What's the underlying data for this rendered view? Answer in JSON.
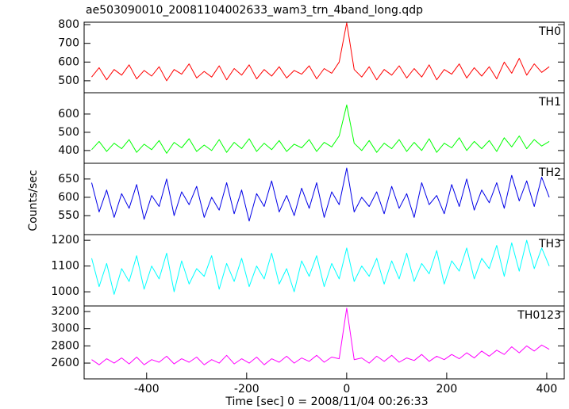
{
  "title": "ae503090010_20081104002633_wam3_trn_4band_long.qdp",
  "xlabel": "Time [sec] 0 = 2008/11/04 00:26:33",
  "ylabel": "Counts/sec",
  "chart_data": [
    {
      "type": "line",
      "label": "TH0",
      "color": "#ff0000",
      "x": [
        -510,
        -495,
        -480,
        -465,
        -450,
        -435,
        -420,
        -405,
        -390,
        -375,
        -360,
        -345,
        -330,
        -315,
        -300,
        -285,
        -270,
        -255,
        -240,
        -225,
        -210,
        -195,
        -180,
        -165,
        -150,
        -135,
        -120,
        -105,
        -90,
        -75,
        -60,
        -45,
        -30,
        -15,
        0,
        15,
        30,
        45,
        60,
        75,
        90,
        105,
        120,
        135,
        150,
        165,
        180,
        195,
        210,
        225,
        240,
        255,
        270,
        285,
        300,
        315,
        330,
        345,
        360,
        375,
        390,
        405
      ],
      "values": [
        520,
        570,
        505,
        560,
        530,
        585,
        510,
        555,
        525,
        575,
        500,
        560,
        535,
        590,
        515,
        550,
        520,
        580,
        505,
        565,
        530,
        585,
        510,
        560,
        525,
        575,
        515,
        555,
        535,
        580,
        510,
        565,
        540,
        600,
        810,
        560,
        520,
        575,
        505,
        560,
        530,
        580,
        515,
        565,
        520,
        585,
        505,
        560,
        535,
        590,
        515,
        570,
        525,
        575,
        510,
        600,
        540,
        620,
        530,
        590,
        545,
        575
      ],
      "xlim": [
        -525,
        435
      ],
      "ylim": [
        436,
        813
      ],
      "yticks": [
        500,
        600,
        700,
        800
      ]
    },
    {
      "type": "line",
      "label": "TH1",
      "color": "#00ff00",
      "x": [
        -510,
        -495,
        -480,
        -465,
        -450,
        -435,
        -420,
        -405,
        -390,
        -375,
        -360,
        -345,
        -330,
        -315,
        -300,
        -285,
        -270,
        -255,
        -240,
        -225,
        -210,
        -195,
        -180,
        -165,
        -150,
        -135,
        -120,
        -105,
        -90,
        -75,
        -60,
        -45,
        -30,
        -15,
        0,
        15,
        30,
        45,
        60,
        75,
        90,
        105,
        120,
        135,
        150,
        165,
        180,
        195,
        210,
        225,
        240,
        255,
        270,
        285,
        300,
        315,
        330,
        345,
        360,
        375,
        390,
        405
      ],
      "values": [
        405,
        450,
        395,
        440,
        410,
        460,
        390,
        435,
        405,
        455,
        385,
        445,
        415,
        465,
        395,
        430,
        400,
        460,
        390,
        445,
        410,
        465,
        395,
        440,
        405,
        455,
        395,
        435,
        415,
        460,
        395,
        445,
        420,
        480,
        650,
        440,
        400,
        455,
        390,
        440,
        410,
        460,
        395,
        445,
        400,
        465,
        390,
        440,
        415,
        470,
        400,
        450,
        410,
        455,
        395,
        470,
        420,
        480,
        410,
        460,
        425,
        450
      ],
      "xlim": [
        -525,
        435
      ],
      "ylim": [
        330,
        717
      ],
      "yticks": [
        400,
        500,
        600
      ]
    },
    {
      "type": "line",
      "label": "TH2",
      "color": "#0000e8",
      "x": [
        -510,
        -495,
        -480,
        -465,
        -450,
        -435,
        -420,
        -405,
        -390,
        -375,
        -360,
        -345,
        -330,
        -315,
        -300,
        -285,
        -270,
        -255,
        -240,
        -225,
        -210,
        -195,
        -180,
        -165,
        -150,
        -135,
        -120,
        -105,
        -90,
        -75,
        -60,
        -45,
        -30,
        -15,
        0,
        15,
        30,
        45,
        60,
        75,
        90,
        105,
        120,
        135,
        150,
        165,
        180,
        195,
        210,
        225,
        240,
        255,
        270,
        285,
        300,
        315,
        330,
        345,
        360,
        375,
        390,
        405
      ],
      "values": [
        640,
        560,
        620,
        545,
        610,
        570,
        635,
        540,
        605,
        575,
        650,
        550,
        615,
        580,
        630,
        545,
        600,
        565,
        640,
        555,
        620,
        535,
        610,
        575,
        645,
        560,
        605,
        550,
        625,
        570,
        640,
        545,
        615,
        580,
        680,
        560,
        600,
        575,
        615,
        555,
        630,
        570,
        610,
        545,
        640,
        580,
        605,
        555,
        635,
        575,
        650,
        565,
        620,
        585,
        640,
        570,
        660,
        590,
        645,
        575,
        655,
        600
      ],
      "xlim": [
        -525,
        435
      ],
      "ylim": [
        498,
        693
      ],
      "yticks": [
        550,
        600,
        650
      ]
    },
    {
      "type": "line",
      "label": "TH3",
      "color": "#00ffff",
      "x": [
        -510,
        -495,
        -480,
        -465,
        -450,
        -435,
        -420,
        -405,
        -390,
        -375,
        -360,
        -345,
        -330,
        -315,
        -300,
        -285,
        -270,
        -255,
        -240,
        -225,
        -210,
        -195,
        -180,
        -165,
        -150,
        -135,
        -120,
        -105,
        -90,
        -75,
        -60,
        -45,
        -30,
        -15,
        0,
        15,
        30,
        45,
        60,
        75,
        90,
        105,
        120,
        135,
        150,
        165,
        180,
        195,
        210,
        225,
        240,
        255,
        270,
        285,
        300,
        315,
        330,
        345,
        360,
        375,
        390,
        405
      ],
      "values": [
        1130,
        1020,
        1110,
        990,
        1090,
        1040,
        1140,
        1010,
        1100,
        1050,
        1150,
        1000,
        1120,
        1030,
        1090,
        1060,
        1140,
        1010,
        1110,
        1040,
        1130,
        1020,
        1100,
        1050,
        1150,
        1030,
        1090,
        1000,
        1120,
        1060,
        1140,
        1020,
        1110,
        1050,
        1170,
        1040,
        1100,
        1060,
        1130,
        1030,
        1120,
        1050,
        1150,
        1040,
        1110,
        1070,
        1160,
        1030,
        1120,
        1080,
        1170,
        1050,
        1130,
        1090,
        1180,
        1060,
        1190,
        1080,
        1200,
        1090,
        1170,
        1100
      ],
      "xlim": [
        -525,
        435
      ],
      "ylim": [
        945,
        1222
      ],
      "yticks": [
        1000,
        1100,
        1200
      ]
    },
    {
      "type": "line",
      "label": "TH0123",
      "color": "#ff00ff",
      "x": [
        -510,
        -495,
        -480,
        -465,
        -450,
        -435,
        -420,
        -405,
        -390,
        -375,
        -360,
        -345,
        -330,
        -315,
        -300,
        -285,
        -270,
        -255,
        -240,
        -225,
        -210,
        -195,
        -180,
        -165,
        -150,
        -135,
        -120,
        -105,
        -90,
        -75,
        -60,
        -45,
        -30,
        -15,
        0,
        15,
        30,
        45,
        60,
        75,
        90,
        105,
        120,
        135,
        150,
        165,
        180,
        195,
        210,
        225,
        240,
        255,
        270,
        285,
        300,
        315,
        330,
        345,
        360,
        375,
        390,
        405
      ],
      "values": [
        2640,
        2580,
        2650,
        2600,
        2660,
        2590,
        2670,
        2580,
        2640,
        2610,
        2680,
        2590,
        2650,
        2610,
        2670,
        2580,
        2640,
        2600,
        2690,
        2590,
        2650,
        2600,
        2670,
        2580,
        2650,
        2610,
        2680,
        2600,
        2660,
        2620,
        2690,
        2610,
        2670,
        2650,
        3240,
        2640,
        2660,
        2600,
        2680,
        2620,
        2690,
        2610,
        2660,
        2630,
        2700,
        2620,
        2680,
        2640,
        2700,
        2650,
        2720,
        2660,
        2740,
        2680,
        2750,
        2700,
        2790,
        2720,
        2800,
        2740,
        2810,
        2760
      ],
      "xlim": [
        -525,
        435
      ],
      "ylim": [
        2416,
        3265
      ],
      "yticks": [
        2600,
        2800,
        3000,
        3200
      ],
      "xticks": [
        -400,
        -200,
        0,
        200,
        400
      ]
    }
  ]
}
